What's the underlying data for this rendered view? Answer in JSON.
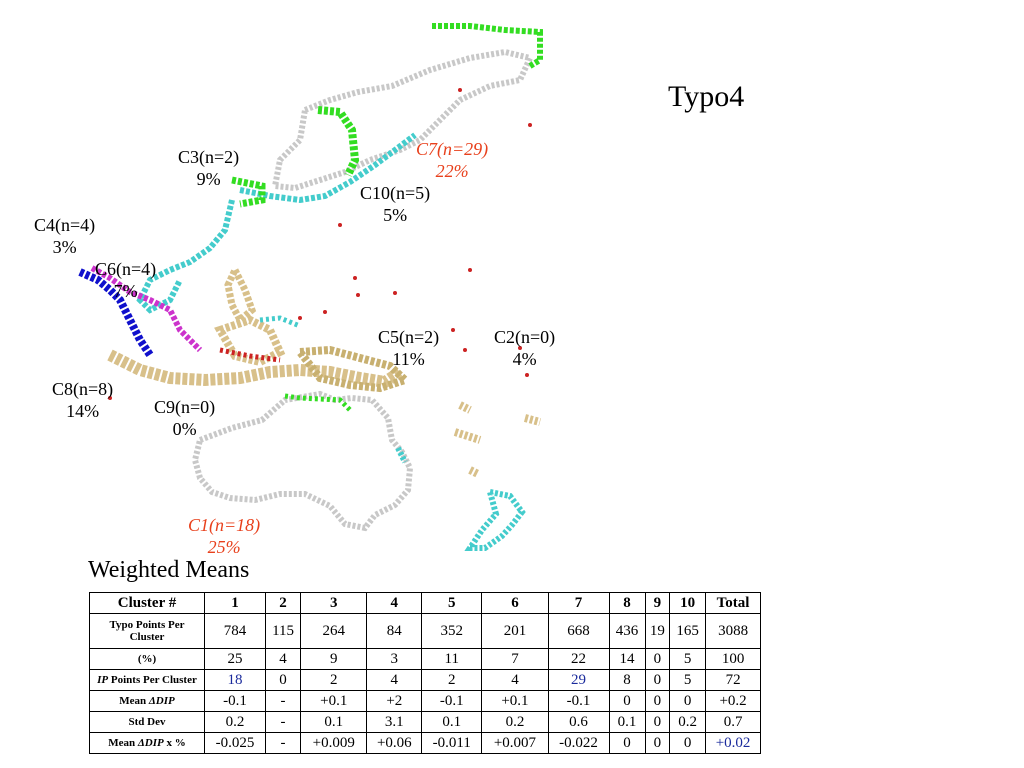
{
  "title": "Typo4",
  "map_labels": {
    "c3": {
      "name": "C3(n=2)",
      "pct": "9%"
    },
    "c7": {
      "name": "C7(n=29)",
      "pct": "22%"
    },
    "c10": {
      "name": "C10(n=5)",
      "pct": "5%"
    },
    "c4": {
      "name": "C4(n=4)",
      "pct": "3%"
    },
    "c6": {
      "name": "C6(n=4)",
      "pct": "7%"
    },
    "c5": {
      "name": "C5(n=2)",
      "pct": "11%"
    },
    "c2": {
      "name": "C2(n=0)",
      "pct": "4%"
    },
    "c8": {
      "name": "C8(n=8)",
      "pct": "14%"
    },
    "c9": {
      "name": "C9(n=0)",
      "pct": "0%"
    },
    "c1": {
      "name": "C1(n=18)",
      "pct": "25%"
    }
  },
  "highlight_color": "#e8401c",
  "cluster_colors": {
    "green": "#33dd22",
    "cyan": "#44cccc",
    "blue": "#1010cc",
    "magenta": "#cc33cc",
    "tan": "#d8c08a",
    "red": "#cc2222",
    "outline": "#c8c8c8"
  },
  "table": {
    "title": "Weighted Means",
    "header": [
      "Cluster #",
      "1",
      "2",
      "3",
      "4",
      "5",
      "6",
      "7",
      "8",
      "9",
      "10",
      "Total"
    ],
    "rows": {
      "typo_points": {
        "label_a": "Typo Points Per",
        "label_b": "Cluster",
        "values": [
          "784",
          "115",
          "264",
          "84",
          "352",
          "201",
          "668",
          "436",
          "19",
          "165",
          "3088"
        ]
      },
      "percent": {
        "label": "(%)",
        "values": [
          "25",
          "4",
          "9",
          "3",
          "11",
          "7",
          "22",
          "14",
          "0",
          "5",
          "100"
        ]
      },
      "ip_points": {
        "label_ip": "IP",
        "label_rest": " Points Per Cluster",
        "values": [
          "18",
          "0",
          "2",
          "4",
          "2",
          "4",
          "29",
          "8",
          "0",
          "5",
          "72"
        ]
      },
      "mean": {
        "label_a": "Mean ",
        "label_b": "ΔDIP",
        "values": [
          "-0.1",
          "-",
          "+0.1",
          "+2",
          "-0.1",
          "+0.1",
          "-0.1",
          "0",
          "0",
          "0",
          "+0.2"
        ]
      },
      "std": {
        "label": "Std Dev",
        "values": [
          "0.2",
          "-",
          "0.1",
          "3.1",
          "0.1",
          "0.2",
          "0.6",
          "0.1",
          "0",
          "0.2",
          "0.7"
        ]
      },
      "mean_pct": {
        "label_a": "Mean ",
        "label_b": "ΔDIP",
        "label_c": " x %",
        "values": [
          "-0.025",
          "-",
          "+0.009",
          "+0.06",
          "-0.011",
          "+0.007",
          "-0.022",
          "0",
          "0",
          "0",
          "+0.02"
        ]
      }
    },
    "blue_text_color": "#1a2a9c"
  }
}
